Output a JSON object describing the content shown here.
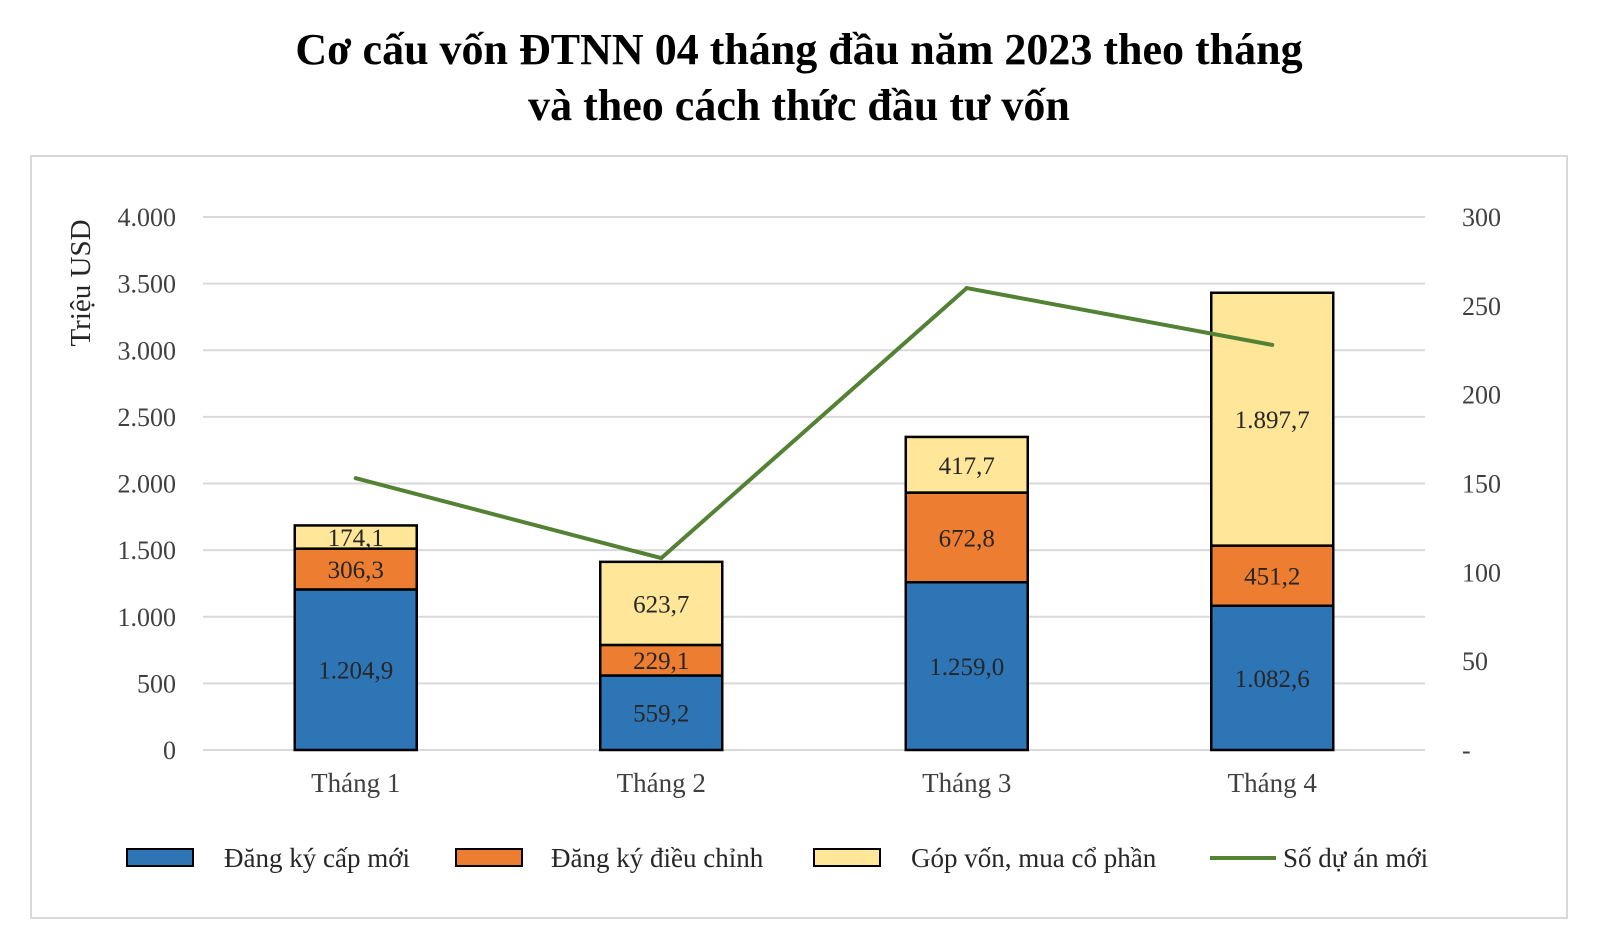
{
  "title_line1": "Cơ cấu vốn ĐTNN 04 tháng đầu năm 2023 theo tháng",
  "title_line2": "và theo cách thức đầu tư vốn",
  "chart_data": {
    "type": "bar",
    "stacked": true,
    "categories": [
      "Tháng 1",
      "Tháng 2",
      "Tháng 3",
      "Tháng 4"
    ],
    "ylabel": "Triệu USD",
    "ylim": [
      0,
      4000
    ],
    "y_ticks": [
      0,
      500,
      1000,
      1500,
      2000,
      2500,
      3000,
      3500,
      4000
    ],
    "y_tick_labels": [
      "0",
      "500",
      "1.000",
      "1.500",
      "2.000",
      "2.500",
      "3.000",
      "3.500",
      "4.000"
    ],
    "y2lim": [
      0,
      300
    ],
    "y2_ticks": [
      0,
      50,
      100,
      150,
      200,
      250,
      300
    ],
    "y2_tick_labels": [
      "-",
      "50",
      "100",
      "150",
      "200",
      "250",
      "300"
    ],
    "grid": true,
    "legend_position": "bottom",
    "series": [
      {
        "name": "Đăng ký cấp mới",
        "type": "bar",
        "axis": "left",
        "color": "#2e75b6",
        "values": [
          1204.9,
          559.2,
          1259.0,
          1082.6
        ],
        "labels": [
          "1.204,9",
          "559,2",
          "1.259,0",
          "1.082,6"
        ]
      },
      {
        "name": "Đăng ký điều chỉnh",
        "type": "bar",
        "axis": "left",
        "color": "#ed7d31",
        "values": [
          306.3,
          229.1,
          672.8,
          451.2
        ],
        "labels": [
          "306,3",
          "229,1",
          "672,8",
          "451,2"
        ]
      },
      {
        "name": "Góp vốn, mua cổ phần",
        "type": "bar",
        "axis": "left",
        "color": "#ffe699",
        "values": [
          174.1,
          623.7,
          417.7,
          1897.7
        ],
        "labels": [
          "174,1",
          "623,7",
          "417,7",
          "1.897,7"
        ]
      },
      {
        "name": "Số dự án mới",
        "type": "line",
        "axis": "right",
        "color": "#548235",
        "values": [
          153,
          108,
          260,
          228
        ]
      }
    ]
  }
}
